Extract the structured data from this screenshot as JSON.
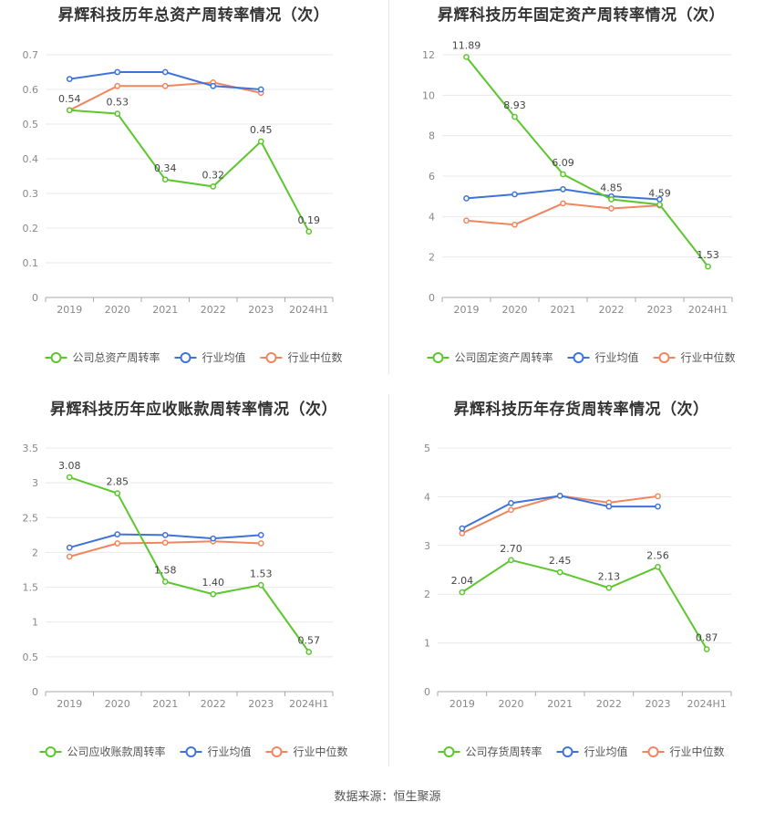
{
  "footer": {
    "source": "数据来源：恒生聚源"
  },
  "colors": {
    "company": "#5cc62d",
    "avg": "#3f73d9",
    "median": "#f0865f",
    "grid": "#e8e8e8",
    "axis": "#aaaaaa"
  },
  "chart_data": [
    {
      "type": "line",
      "title": "昇辉科技历年总资产周转率情况（次）",
      "categories": [
        "2019",
        "2020",
        "2021",
        "2022",
        "2023",
        "2024H1"
      ],
      "ylim": [
        0,
        0.7
      ],
      "yticks": [
        0,
        0.1,
        0.2,
        0.3,
        0.4,
        0.5,
        0.6,
        0.7
      ],
      "yticklabels": [
        "0",
        "0.1",
        "0.2",
        "0.3",
        "0.4",
        "0.5",
        "0.6",
        "0.7"
      ],
      "series": [
        {
          "name": "公司总资产周转率",
          "key": "company",
          "values": [
            0.54,
            0.53,
            0.34,
            0.32,
            0.45,
            0.19
          ],
          "labels": [
            "0.54",
            "0.53",
            "0.34",
            "0.32",
            "0.45",
            "0.19"
          ]
        },
        {
          "name": "行业均值",
          "key": "avg",
          "values": [
            0.63,
            0.65,
            0.65,
            0.61,
            0.6,
            null
          ]
        },
        {
          "name": "行业中位数",
          "key": "median",
          "values": [
            0.54,
            0.61,
            0.61,
            0.62,
            0.59,
            null
          ]
        }
      ]
    },
    {
      "type": "line",
      "title": "昇辉科技历年固定资产周转率情况（次）",
      "categories": [
        "2019",
        "2020",
        "2021",
        "2022",
        "2023",
        "2024H1"
      ],
      "ylim": [
        0,
        12
      ],
      "yticks": [
        0,
        2,
        4,
        6,
        8,
        10,
        12
      ],
      "yticklabels": [
        "0",
        "2",
        "4",
        "6",
        "8",
        "10",
        "12"
      ],
      "series": [
        {
          "name": "公司固定资产周转率",
          "key": "company",
          "values": [
            11.89,
            8.93,
            6.09,
            4.85,
            4.59,
            1.53
          ],
          "labels": [
            "11.89",
            "8.93",
            "6.09",
            "4.85",
            "4.59",
            "1.53"
          ]
        },
        {
          "name": "行业均值",
          "key": "avg",
          "values": [
            4.9,
            5.1,
            5.35,
            5.0,
            4.85,
            null
          ]
        },
        {
          "name": "行业中位数",
          "key": "median",
          "values": [
            3.8,
            3.6,
            4.65,
            4.4,
            4.55,
            null
          ]
        }
      ]
    },
    {
      "type": "line",
      "title": "昇辉科技历年应收账款周转率情况（次）",
      "categories": [
        "2019",
        "2020",
        "2021",
        "2022",
        "2023",
        "2024H1"
      ],
      "ylim": [
        0,
        3.5
      ],
      "yticks": [
        0,
        0.5,
        1,
        1.5,
        2,
        2.5,
        3,
        3.5
      ],
      "yticklabels": [
        "0",
        "0.5",
        "1",
        "1.5",
        "2",
        "2.5",
        "3",
        "3.5"
      ],
      "series": [
        {
          "name": "公司应收账款周转率",
          "key": "company",
          "values": [
            3.08,
            2.85,
            1.58,
            1.4,
            1.53,
            0.57
          ],
          "labels": [
            "3.08",
            "2.85",
            "1.58",
            "1.40",
            "1.53",
            "0.57"
          ]
        },
        {
          "name": "行业均值",
          "key": "avg",
          "values": [
            2.07,
            2.26,
            2.25,
            2.2,
            2.25,
            null
          ]
        },
        {
          "name": "行业中位数",
          "key": "median",
          "values": [
            1.94,
            2.13,
            2.14,
            2.16,
            2.13,
            null
          ]
        }
      ]
    },
    {
      "type": "line",
      "title": "昇辉科技历年存货周转率情况（次）",
      "categories": [
        "2019",
        "2020",
        "2021",
        "2022",
        "2023",
        "2024H1"
      ],
      "ylim": [
        0,
        5
      ],
      "yticks": [
        0,
        1,
        2,
        3,
        4,
        5
      ],
      "yticklabels": [
        "0",
        "1",
        "2",
        "3",
        "4",
        "5"
      ],
      "series": [
        {
          "name": "公司存货周转率",
          "key": "company",
          "values": [
            2.04,
            2.7,
            2.45,
            2.13,
            2.56,
            0.87
          ],
          "labels": [
            "2.04",
            "2.70",
            "2.45",
            "2.13",
            "2.56",
            "0.87"
          ]
        },
        {
          "name": "行业均值",
          "key": "avg",
          "values": [
            3.35,
            3.87,
            4.02,
            3.8,
            3.8,
            null
          ]
        },
        {
          "name": "行业中位数",
          "key": "median",
          "values": [
            3.25,
            3.73,
            4.02,
            3.88,
            4.01,
            null
          ]
        }
      ]
    }
  ]
}
